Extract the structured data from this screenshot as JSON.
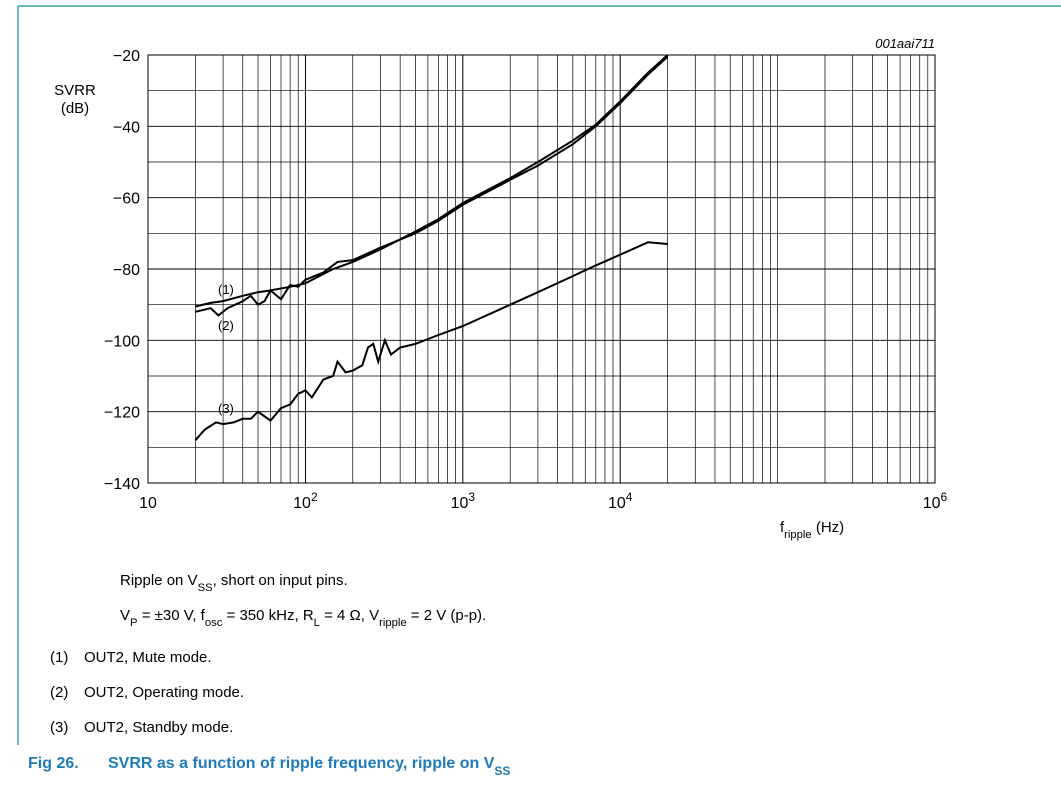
{
  "chart_data": {
    "type": "line",
    "id": "001aai711",
    "y_label": [
      "SVRR",
      "(dB)"
    ],
    "x_label": [
      "f",
      {
        "sub": "ripple"
      },
      " (Hz)"
    ],
    "xscale": "log",
    "xlim": [
      10,
      1000000
    ],
    "xticks": [
      10,
      {
        "value": 100,
        "label": [
          "10",
          {
            "sup": "2"
          }
        ]
      },
      {
        "value": 1000,
        "label": [
          "10",
          {
            "sup": "3"
          }
        ]
      },
      {
        "value": 10000,
        "label": [
          "10",
          {
            "sup": "4"
          }
        ]
      },
      {
        "value": 1000000,
        "label": [
          "10",
          {
            "sup": "6"
          }
        ]
      }
    ],
    "ylim": [
      -140,
      -20
    ],
    "yticks": [
      {
        "value": -20,
        "label": "−20"
      },
      {
        "value": -40,
        "label": "−40"
      },
      {
        "value": -60,
        "label": "−60"
      },
      {
        "value": -80,
        "label": "−80"
      },
      {
        "value": -100,
        "label": "−100"
      },
      {
        "value": -120,
        "label": "−120"
      },
      {
        "value": -140,
        "label": "−140"
      }
    ],
    "ygrid": [
      -30,
      -50,
      -70,
      -90,
      -110,
      -130
    ],
    "grid": true,
    "series": [
      {
        "name": "(1)",
        "description": "OUT2, Mute mode.",
        "color": "#000000",
        "x": [
          20,
          25,
          28,
          32,
          40,
          45,
          50,
          55,
          60,
          70,
          80,
          90,
          100,
          130,
          160,
          200,
          300,
          500,
          700,
          1000,
          2000,
          3000,
          5000,
          7000,
          10000,
          15000,
          20000
        ],
        "values": [
          -92,
          -91,
          -93,
          -91,
          -89,
          -87.5,
          -90,
          -89,
          -86,
          -88.5,
          -84.5,
          -85,
          -83,
          -81,
          -78,
          -77.5,
          -74,
          -70,
          -66.5,
          -62,
          -55,
          -51,
          -45,
          -40,
          -33.5,
          -25.5,
          -20.5
        ]
      },
      {
        "name": "(2)",
        "description": "OUT2, Operating mode.",
        "color": "#000000",
        "x": [
          20,
          25,
          30,
          40,
          50,
          60,
          80,
          100,
          150,
          200,
          300,
          500,
          700,
          1000,
          2000,
          3000,
          5000,
          7000,
          10000,
          15000,
          20000
        ],
        "values": [
          -90.5,
          -89.5,
          -89,
          -87.5,
          -86.5,
          -86,
          -85,
          -84,
          -80,
          -78,
          -74.5,
          -69.5,
          -66,
          -61.5,
          -54.5,
          -50,
          -44,
          -39.5,
          -33,
          -25,
          -20
        ]
      },
      {
        "name": "(3)",
        "description": "OUT2, Standby mode.",
        "color": "#000000",
        "x": [
          20,
          23,
          27,
          30,
          35,
          40,
          45,
          50,
          60,
          70,
          80,
          90,
          100,
          110,
          130,
          150,
          160,
          180,
          200,
          230,
          250,
          270,
          290,
          320,
          350,
          400,
          500,
          700,
          1000,
          2000,
          3000,
          5000,
          7000,
          10000,
          15000,
          20000
        ],
        "values": [
          -128,
          -125,
          -123,
          -123.5,
          -123,
          -122,
          -122,
          -120,
          -122.5,
          -119,
          -118,
          -115,
          -114,
          -116,
          -111,
          -110,
          -106,
          -109,
          -108.5,
          -107,
          -102,
          -101,
          -106,
          -100,
          -104,
          -102,
          -101,
          -98.5,
          -96,
          -90,
          -86.5,
          -82,
          -79,
          -76,
          -72.5,
          -73
        ]
      }
    ],
    "notes": [
      [
        "Ripple on V",
        {
          "sub": "SS"
        },
        ", short on input pins."
      ],
      [
        "V",
        {
          "sub": "P"
        },
        " = ±30 V, f",
        {
          "sub": "osc"
        },
        " = 350 kHz, R",
        {
          "sub": "L"
        },
        " = 4 Ω, V",
        {
          "sub": "ripple"
        },
        " = 2 V (p-p)."
      ]
    ],
    "figure": {
      "number": "Fig 26.",
      "title": [
        "SVRR as a function of ripple frequency, ripple on V",
        {
          "sub": "SS"
        }
      ]
    }
  }
}
